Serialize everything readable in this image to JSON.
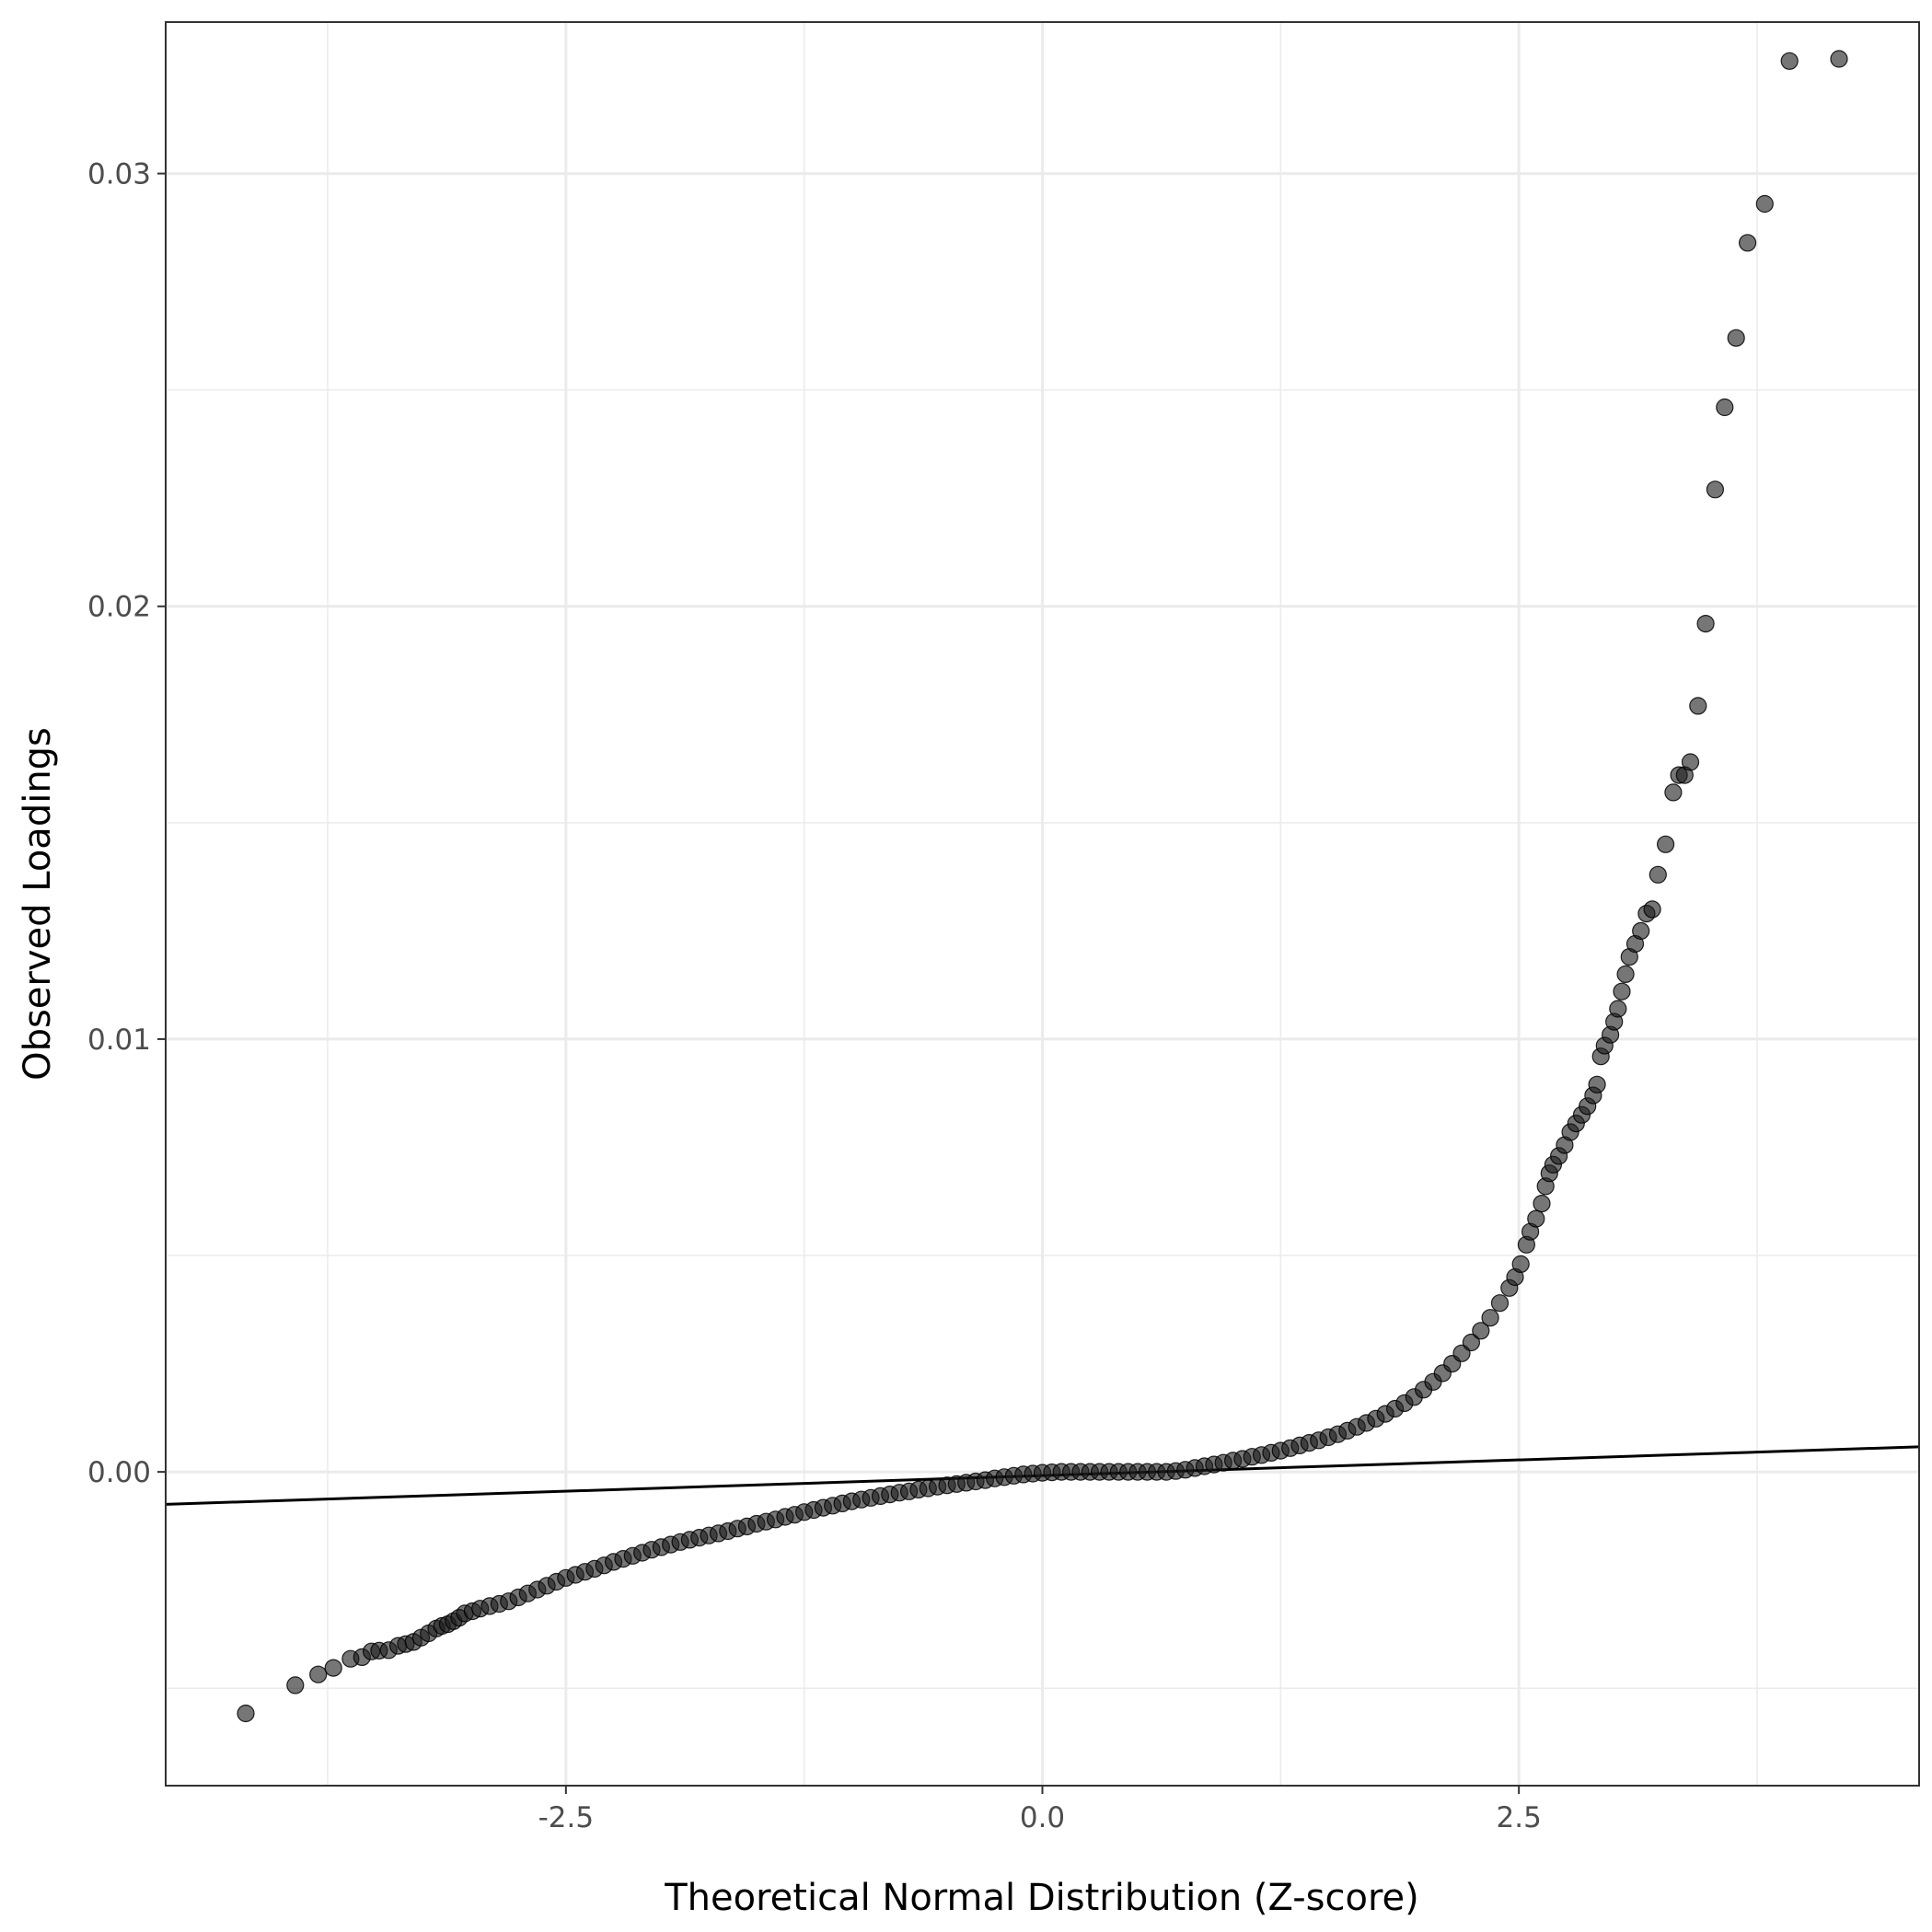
{
  "chart_data": {
    "type": "scatter",
    "title": "",
    "xlabel": "Theoretical Normal Distribution (Z-score)",
    "ylabel": "Observed Loadings",
    "xlim": [
      -4.6,
      4.6
    ],
    "ylim": [
      -0.00725,
      0.0335
    ],
    "x_ticks": [
      -2.5,
      0.0,
      2.5
    ],
    "x_tick_labels": [
      "-2.5",
      "0.0",
      "2.5"
    ],
    "x_minor_ticks": [
      -3.75,
      -1.25,
      1.25,
      3.75
    ],
    "y_ticks": [
      0.0,
      0.01,
      0.02,
      0.03
    ],
    "y_tick_labels": [
      "0.00",
      "0.01",
      "0.02",
      "0.03"
    ],
    "y_minor_ticks": [
      -0.005,
      0.005,
      0.015,
      0.025
    ],
    "grid": true,
    "legend": "none",
    "point_color": "#000000",
    "point_alpha": 0.6,
    "reference_line": {
      "type": "qq-line",
      "points": [
        [
          -4.6,
          -0.00075
        ],
        [
          4.6,
          0.00058
        ]
      ]
    },
    "series": [
      {
        "points": [
          [
            -4.18,
            -0.00558
          ],
          [
            -3.92,
            -0.00493
          ],
          [
            -3.8,
            -0.00468
          ],
          [
            -3.72,
            -0.00453
          ],
          [
            -3.63,
            -0.00432
          ],
          [
            -3.57,
            -0.00428
          ],
          [
            -3.52,
            -0.00415
          ],
          [
            -3.48,
            -0.00413
          ],
          [
            -3.43,
            -0.00412
          ],
          [
            -3.38,
            -0.00402
          ],
          [
            -3.34,
            -0.00398
          ],
          [
            -3.3,
            -0.00393
          ],
          [
            -3.26,
            -0.00383
          ],
          [
            -3.22,
            -0.00373
          ],
          [
            -3.18,
            -0.00362
          ],
          [
            -3.15,
            -0.00356
          ],
          [
            -3.12,
            -0.00352
          ],
          [
            -3.09,
            -0.00345
          ],
          [
            -3.06,
            -0.00337
          ],
          [
            -3.03,
            -0.00327
          ],
          [
            -2.99,
            -0.00322
          ],
          [
            -2.95,
            -0.00316
          ],
          [
            -2.9,
            -0.0031
          ],
          [
            -2.85,
            -0.00305
          ],
          [
            -2.8,
            -0.00299
          ],
          [
            -2.75,
            -0.0029
          ],
          [
            -2.7,
            -0.00281
          ],
          [
            -2.65,
            -0.00272
          ],
          [
            -2.6,
            -0.00263
          ],
          [
            -2.55,
            -0.00254
          ],
          [
            -2.5,
            -0.00245
          ],
          [
            -2.45,
            -0.00238
          ],
          [
            -2.4,
            -0.00231
          ],
          [
            -2.35,
            -0.00224
          ],
          [
            -2.3,
            -0.00216
          ],
          [
            -2.25,
            -0.00208
          ],
          [
            -2.2,
            -0.00201
          ],
          [
            -2.15,
            -0.00194
          ],
          [
            -2.1,
            -0.00187
          ],
          [
            -2.05,
            -0.0018
          ],
          [
            -2.0,
            -0.00174
          ],
          [
            -1.95,
            -0.00168
          ],
          [
            -1.9,
            -0.00162
          ],
          [
            -1.85,
            -0.00157
          ],
          [
            -1.8,
            -0.00152
          ],
          [
            -1.75,
            -0.00147
          ],
          [
            -1.7,
            -0.00142
          ],
          [
            -1.65,
            -0.00137
          ],
          [
            -1.6,
            -0.00131
          ],
          [
            -1.55,
            -0.00126
          ],
          [
            -1.5,
            -0.0012
          ],
          [
            -1.45,
            -0.00115
          ],
          [
            -1.4,
            -0.0011
          ],
          [
            -1.35,
            -0.00104
          ],
          [
            -1.3,
            -0.00099
          ],
          [
            -1.25,
            -0.00093
          ],
          [
            -1.2,
            -0.00088
          ],
          [
            -1.15,
            -0.00083
          ],
          [
            -1.1,
            -0.00078
          ],
          [
            -1.05,
            -0.00073
          ],
          [
            -1.0,
            -0.00068
          ],
          [
            -0.95,
            -0.00064
          ],
          [
            -0.9,
            -0.0006
          ],
          [
            -0.85,
            -0.00056
          ],
          [
            -0.8,
            -0.00052
          ],
          [
            -0.75,
            -0.00048
          ],
          [
            -0.7,
            -0.00045
          ],
          [
            -0.65,
            -0.00041
          ],
          [
            -0.6,
            -0.00038
          ],
          [
            -0.55,
            -0.00034
          ],
          [
            -0.5,
            -0.00031
          ],
          [
            -0.45,
            -0.00028
          ],
          [
            -0.4,
            -0.00025
          ],
          [
            -0.35,
            -0.00022
          ],
          [
            -0.3,
            -0.00019
          ],
          [
            -0.25,
            -0.00015
          ],
          [
            -0.2,
            -0.00012
          ],
          [
            -0.15,
            -9e-05
          ],
          [
            -0.1,
            -6e-05
          ],
          [
            -0.05,
            -4e-05
          ],
          [
            0.0,
            -2e-05
          ],
          [
            0.05,
            -1e-05
          ],
          [
            0.1,
            0.0
          ],
          [
            0.15,
            0.0
          ],
          [
            0.2,
            0.0
          ],
          [
            0.25,
            0.0
          ],
          [
            0.3,
            0.0
          ],
          [
            0.35,
            0.0
          ],
          [
            0.4,
            0.0
          ],
          [
            0.45,
            0.0
          ],
          [
            0.5,
            0.0
          ],
          [
            0.55,
            0.0
          ],
          [
            0.6,
            0.0
          ],
          [
            0.65,
            0.0
          ],
          [
            0.7,
            2e-05
          ],
          [
            0.75,
            5e-05
          ],
          [
            0.8,
            9e-05
          ],
          [
            0.85,
            0.00013
          ],
          [
            0.9,
            0.00017
          ],
          [
            0.95,
            0.00021
          ],
          [
            1.0,
            0.00026
          ],
          [
            1.05,
            0.0003
          ],
          [
            1.1,
            0.00035
          ],
          [
            1.15,
            0.00039
          ],
          [
            1.2,
            0.00044
          ],
          [
            1.25,
            0.00049
          ],
          [
            1.3,
            0.00055
          ],
          [
            1.35,
            0.00061
          ],
          [
            1.4,
            0.00067
          ],
          [
            1.45,
            0.00073
          ],
          [
            1.5,
            0.0008
          ],
          [
            1.55,
            0.00087
          ],
          [
            1.6,
            0.00095
          ],
          [
            1.65,
            0.00104
          ],
          [
            1.7,
            0.00113
          ],
          [
            1.75,
            0.00123
          ],
          [
            1.8,
            0.00134
          ],
          [
            1.85,
            0.00146
          ],
          [
            1.9,
            0.00159
          ],
          [
            1.95,
            0.00173
          ],
          [
            2.0,
            0.0019
          ],
          [
            2.05,
            0.00208
          ],
          [
            2.1,
            0.00228
          ],
          [
            2.15,
            0.0025
          ],
          [
            2.2,
            0.00274
          ],
          [
            2.25,
            0.00299
          ],
          [
            2.3,
            0.00326
          ],
          [
            2.35,
            0.00356
          ],
          [
            2.4,
            0.0039
          ],
          [
            2.45,
            0.00425
          ],
          [
            2.48,
            0.0045
          ],
          [
            2.51,
            0.0048
          ],
          [
            2.54,
            0.00525
          ],
          [
            2.56,
            0.00555
          ],
          [
            2.59,
            0.00585
          ],
          [
            2.62,
            0.0062
          ],
          [
            2.64,
            0.0066
          ],
          [
            2.66,
            0.0069
          ],
          [
            2.68,
            0.0071
          ],
          [
            2.71,
            0.0073
          ],
          [
            2.74,
            0.00755
          ],
          [
            2.77,
            0.00785
          ],
          [
            2.8,
            0.00805
          ],
          [
            2.83,
            0.00825
          ],
          [
            2.86,
            0.00845
          ],
          [
            2.89,
            0.0087
          ],
          [
            2.91,
            0.00895
          ],
          [
            2.93,
            0.0096
          ],
          [
            2.95,
            0.00985
          ],
          [
            2.98,
            0.0101
          ],
          [
            3.0,
            0.0104
          ],
          [
            3.02,
            0.0107
          ],
          [
            3.04,
            0.0111
          ],
          [
            3.06,
            0.0115
          ],
          [
            3.08,
            0.0119
          ],
          [
            3.11,
            0.0122
          ],
          [
            3.14,
            0.0125
          ],
          [
            3.17,
            0.0129
          ],
          [
            3.2,
            0.013
          ],
          [
            3.23,
            0.0138
          ],
          [
            3.27,
            0.0145
          ],
          [
            3.31,
            0.0157
          ],
          [
            3.34,
            0.0161
          ],
          [
            3.37,
            0.0161
          ],
          [
            3.4,
            0.0164
          ],
          [
            3.44,
            0.0177
          ],
          [
            3.48,
            0.0196
          ],
          [
            3.53,
            0.0227
          ],
          [
            3.58,
            0.0246
          ],
          [
            3.64,
            0.0262
          ],
          [
            3.7,
            0.0284
          ],
          [
            3.79,
            0.0293
          ],
          [
            3.92,
            0.0326
          ],
          [
            4.18,
            0.03265
          ]
        ]
      }
    ]
  }
}
